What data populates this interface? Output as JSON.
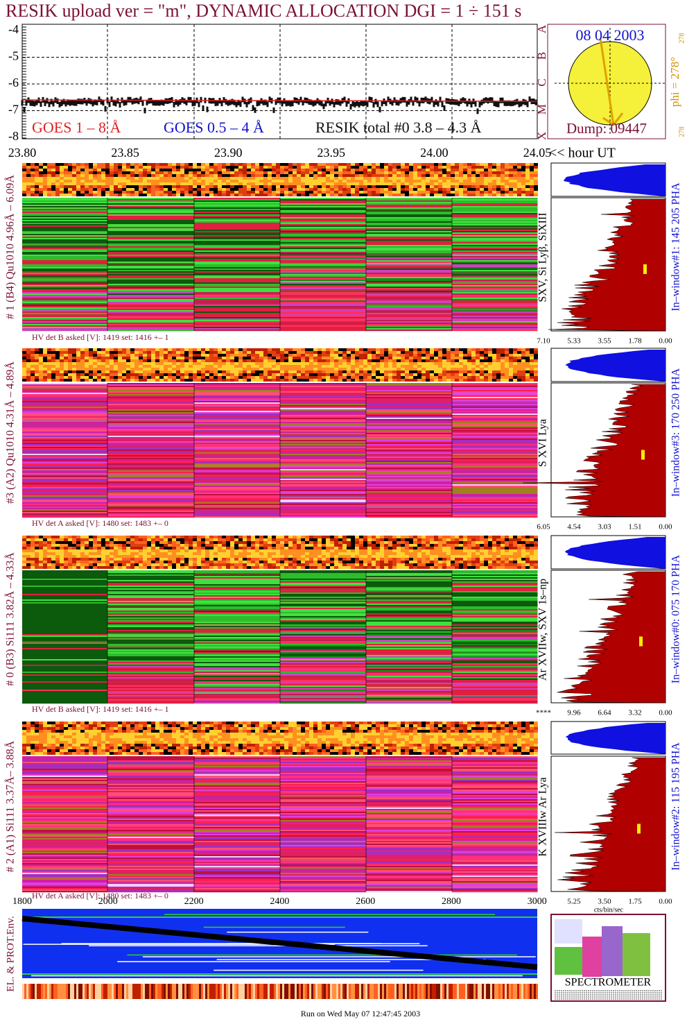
{
  "title": "RESIK upload ver = \"m\", DYNAMIC ALLOCATION  DGI =   1 ÷ 151 s",
  "goes_panel": {
    "yticks": [
      "-4",
      "-5",
      "-6",
      "-7",
      "-8"
    ],
    "classes": [
      "X",
      "M",
      "C",
      "B",
      "A"
    ],
    "legend": [
      "GOES 1 – 8 Å",
      "GOES 0.5 – 4 Å",
      "RESIK total #0  3.8 – 4.3 Å"
    ]
  },
  "sun": {
    "date": "08 04 2003",
    "dump": "Dump: 09447",
    "phi": "phi = 278°",
    "phi_small": "278",
    "corner": "278"
  },
  "time_axis": {
    "ticks": [
      "23.80",
      "23.85",
      "23.90",
      "23.95",
      "24.00",
      "24.05"
    ],
    "label": "<< hour UT"
  },
  "detectors": [
    {
      "label": "# 1 (B4) Qu1010 4.96Å – 6.09Å",
      "hv": "HV det B asked [V]:  1419 set:  1416 +–   1",
      "lines": "SXV, Si Lyβ, SiXIII",
      "window": "In–window#1:  145 205 PHA",
      "ticks": [
        "7.10",
        "5.33",
        "3.55",
        "1.78",
        "0.00"
      ]
    },
    {
      "label": "#3 (A2) Qu1010  4.31Å – 4.89Å",
      "hv": "HV det A asked [V]:  1480 set:  1483 +–   0",
      "lines": "S XVI Lya",
      "window": "In–window#3:  170 250 PHA",
      "ticks": [
        "6.05",
        "4.54",
        "3.03",
        "1.51",
        "0.00"
      ]
    },
    {
      "label": "# 0 (B3) Si111  3.82Å – 4.33Å",
      "hv": "HV det B asked [V]:  1419 set:  1416 +–   1",
      "lines": "Ar XVIIw,  SXV 1s–np",
      "window": "In–window#0:  075 170 PHA",
      "ticks": [
        "****",
        "9.96",
        "6.64",
        "3.32",
        "0.00"
      ]
    },
    {
      "label": "# 2 (A1) Si111  3.37Å– 3.88Å",
      "hv": "HV det A asked [V]:  1480 set:  1483 +–   0",
      "lines": "K XVIIIw  Ar Lya",
      "window": "In–window#2:  115 195 PHA",
      "ticks": [
        "5.25",
        "3.50",
        "1.75",
        "0.00"
      ]
    }
  ],
  "hist_unit": "cts/bin/sec",
  "env": {
    "label": "EL. & PROT.Env.",
    "ticks": [
      "1800",
      "2000",
      "2200",
      "2400",
      "2600",
      "2800",
      "3000"
    ]
  },
  "logo": {
    "word": "SPECTROMETER"
  },
  "footer": "Run on Wed May 07 12:47:45 2003"
}
